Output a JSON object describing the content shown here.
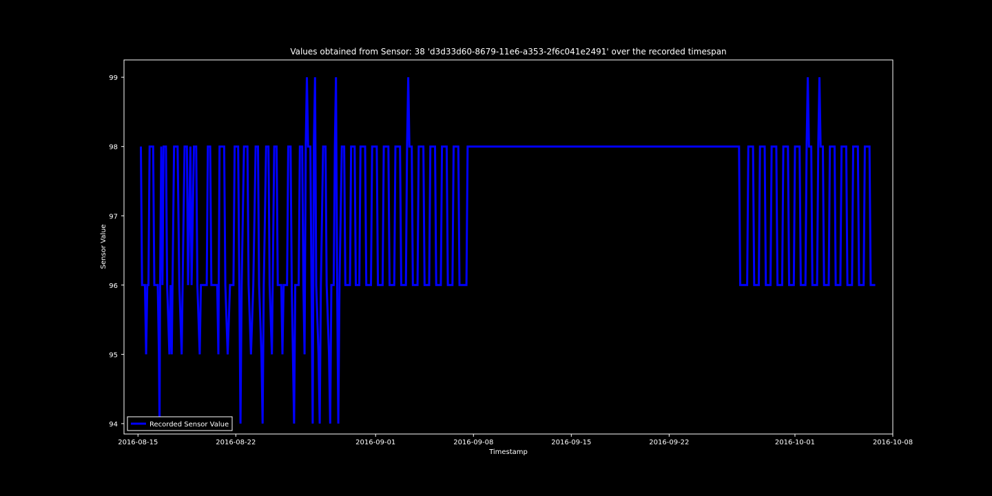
{
  "chart_data": {
    "type": "line",
    "title": "Values obtained from Sensor: 38 'd3d33d60-8679-11e6-a353-2f6c041e2491' over the recorded timespan",
    "xlabel": "Timestamp",
    "ylabel": "Sensor Value",
    "xlim": [
      "2016-08-14",
      "2016-10-08"
    ],
    "ylim": [
      93.85,
      99.25
    ],
    "x_ticks": [
      "2016-08-15",
      "2016-08-22",
      "2016-09-01",
      "2016-09-08",
      "2016-09-15",
      "2016-09-22",
      "2016-10-01",
      "2016-10-08"
    ],
    "y_ticks": [
      94,
      95,
      96,
      97,
      98,
      99
    ],
    "grid": false,
    "legend_position": "lower-left",
    "series": [
      {
        "name": "Recorded Sensor Value",
        "color": "#0000ff",
        "points": [
          [
            "2016-08-15T05:00",
            98
          ],
          [
            "2016-08-15T07:00",
            96
          ],
          [
            "2016-08-15T12:00",
            96
          ],
          [
            "2016-08-15T14:00",
            95
          ],
          [
            "2016-08-15T16:00",
            96
          ],
          [
            "2016-08-15T18:00",
            96
          ],
          [
            "2016-08-15T20:00",
            98
          ],
          [
            "2016-08-16T02:00",
            98
          ],
          [
            "2016-08-16T04:00",
            96
          ],
          [
            "2016-08-16T10:00",
            96
          ],
          [
            "2016-08-16T12:00",
            95
          ],
          [
            "2016-08-16T13:00",
            94
          ],
          [
            "2016-08-16T14:00",
            96
          ],
          [
            "2016-08-16T16:00",
            98
          ],
          [
            "2016-08-16T18:00",
            96
          ],
          [
            "2016-08-16T20:00",
            98
          ],
          [
            "2016-08-17T00:00",
            98
          ],
          [
            "2016-08-17T02:00",
            96
          ],
          [
            "2016-08-17T06:00",
            95
          ],
          [
            "2016-08-17T08:00",
            96
          ],
          [
            "2016-08-17T10:00",
            95
          ],
          [
            "2016-08-17T14:00",
            98
          ],
          [
            "2016-08-17T20:00",
            98
          ],
          [
            "2016-08-17T23:00",
            96
          ],
          [
            "2016-08-18T03:00",
            95
          ],
          [
            "2016-08-18T08:00",
            98
          ],
          [
            "2016-08-18T12:00",
            98
          ],
          [
            "2016-08-18T14:00",
            96
          ],
          [
            "2016-08-18T18:00",
            98
          ],
          [
            "2016-08-18T20:00",
            96
          ],
          [
            "2016-08-19T00:00",
            98
          ],
          [
            "2016-08-19T04:00",
            98
          ],
          [
            "2016-08-19T06:00",
            96
          ],
          [
            "2016-08-19T10:00",
            95
          ],
          [
            "2016-08-19T12:00",
            96
          ],
          [
            "2016-08-19T22:00",
            96
          ],
          [
            "2016-08-20T00:00",
            98
          ],
          [
            "2016-08-20T04:00",
            98
          ],
          [
            "2016-08-20T06:00",
            96
          ],
          [
            "2016-08-20T16:00",
            96
          ],
          [
            "2016-08-20T18:00",
            95
          ],
          [
            "2016-08-20T20:00",
            98
          ],
          [
            "2016-08-21T04:00",
            98
          ],
          [
            "2016-08-21T06:00",
            96
          ],
          [
            "2016-08-21T10:00",
            95
          ],
          [
            "2016-08-21T14:00",
            96
          ],
          [
            "2016-08-21T20:00",
            96
          ],
          [
            "2016-08-21T22:00",
            98
          ],
          [
            "2016-08-22T04:00",
            98
          ],
          [
            "2016-08-22T06:00",
            96
          ],
          [
            "2016-08-22T08:00",
            94
          ],
          [
            "2016-08-22T10:00",
            96
          ],
          [
            "2016-08-22T14:00",
            98
          ],
          [
            "2016-08-22T20:00",
            98
          ],
          [
            "2016-08-22T22:00",
            96
          ],
          [
            "2016-08-23T02:00",
            95
          ],
          [
            "2016-08-23T06:00",
            96
          ],
          [
            "2016-08-23T10:00",
            98
          ],
          [
            "2016-08-23T14:00",
            98
          ],
          [
            "2016-08-23T16:00",
            96
          ],
          [
            "2016-08-23T20:00",
            95
          ],
          [
            "2016-08-23T22:00",
            94
          ],
          [
            "2016-08-24T00:00",
            96
          ],
          [
            "2016-08-24T04:00",
            98
          ],
          [
            "2016-08-24T08:00",
            98
          ],
          [
            "2016-08-24T10:00",
            96
          ],
          [
            "2016-08-24T14:00",
            95
          ],
          [
            "2016-08-24T18:00",
            98
          ],
          [
            "2016-08-24T22:00",
            98
          ],
          [
            "2016-08-25T00:00",
            96
          ],
          [
            "2016-08-25T06:00",
            96
          ],
          [
            "2016-08-25T08:00",
            95
          ],
          [
            "2016-08-25T10:00",
            96
          ],
          [
            "2016-08-25T16:00",
            96
          ],
          [
            "2016-08-25T18:00",
            98
          ],
          [
            "2016-08-25T22:00",
            98
          ],
          [
            "2016-08-26T00:00",
            96
          ],
          [
            "2016-08-26T02:00",
            95
          ],
          [
            "2016-08-26T04:00",
            94
          ],
          [
            "2016-08-26T06:00",
            96
          ],
          [
            "2016-08-26T12:00",
            96
          ],
          [
            "2016-08-26T14:00",
            98
          ],
          [
            "2016-08-26T18:00",
            98
          ],
          [
            "2016-08-26T20:00",
            96
          ],
          [
            "2016-08-26T22:00",
            95
          ],
          [
            "2016-08-27T00:00",
            98
          ],
          [
            "2016-08-27T02:00",
            99
          ],
          [
            "2016-08-27T04:00",
            98
          ],
          [
            "2016-08-27T08:00",
            98
          ],
          [
            "2016-08-27T10:00",
            96
          ],
          [
            "2016-08-27T12:00",
            94
          ],
          [
            "2016-08-27T14:00",
            98
          ],
          [
            "2016-08-27T16:00",
            99
          ],
          [
            "2016-08-27T18:00",
            96
          ],
          [
            "2016-08-27T22:00",
            95
          ],
          [
            "2016-08-28T00:00",
            94
          ],
          [
            "2016-08-28T02:00",
            96
          ],
          [
            "2016-08-28T06:00",
            98
          ],
          [
            "2016-08-28T10:00",
            98
          ],
          [
            "2016-08-28T12:00",
            96
          ],
          [
            "2016-08-28T16:00",
            95
          ],
          [
            "2016-08-28T18:00",
            94
          ],
          [
            "2016-08-28T20:00",
            96
          ],
          [
            "2016-08-29T00:00",
            96
          ],
          [
            "2016-08-29T02:00",
            98
          ],
          [
            "2016-08-29T04:00",
            99
          ],
          [
            "2016-08-29T06:00",
            96
          ],
          [
            "2016-08-29T08:00",
            94
          ],
          [
            "2016-08-29T10:00",
            96
          ],
          [
            "2016-08-29T14:00",
            98
          ],
          [
            "2016-08-29T18:00",
            98
          ],
          [
            "2016-08-29T20:00",
            96
          ],
          [
            "2016-08-30T04:00",
            96
          ],
          [
            "2016-08-30T06:00",
            98
          ],
          [
            "2016-08-30T12:00",
            98
          ],
          [
            "2016-08-30T14:00",
            96
          ],
          [
            "2016-08-30T20:00",
            96
          ],
          [
            "2016-08-30T22:00",
            98
          ],
          [
            "2016-08-31T06:00",
            98
          ],
          [
            "2016-08-31T08:00",
            96
          ],
          [
            "2016-08-31T16:00",
            96
          ],
          [
            "2016-08-31T18:00",
            98
          ],
          [
            "2016-09-01T02:00",
            98
          ],
          [
            "2016-09-01T04:00",
            96
          ],
          [
            "2016-09-01T12:00",
            96
          ],
          [
            "2016-09-01T14:00",
            98
          ],
          [
            "2016-09-01T22:00",
            98
          ],
          [
            "2016-09-02T00:00",
            96
          ],
          [
            "2016-09-02T08:00",
            96
          ],
          [
            "2016-09-02T10:00",
            98
          ],
          [
            "2016-09-02T18:00",
            98
          ],
          [
            "2016-09-02T20:00",
            96
          ],
          [
            "2016-09-03T04:00",
            96
          ],
          [
            "2016-09-03T06:00",
            98
          ],
          [
            "2016-09-03T08:00",
            99
          ],
          [
            "2016-09-03T10:00",
            98
          ],
          [
            "2016-09-03T14:00",
            98
          ],
          [
            "2016-09-03T16:00",
            96
          ],
          [
            "2016-09-04T00:00",
            96
          ],
          [
            "2016-09-04T02:00",
            98
          ],
          [
            "2016-09-04T10:00",
            98
          ],
          [
            "2016-09-04T12:00",
            96
          ],
          [
            "2016-09-04T20:00",
            96
          ],
          [
            "2016-09-04T22:00",
            98
          ],
          [
            "2016-09-05T06:00",
            98
          ],
          [
            "2016-09-05T08:00",
            96
          ],
          [
            "2016-09-05T16:00",
            96
          ],
          [
            "2016-09-05T18:00",
            98
          ],
          [
            "2016-09-06T02:00",
            98
          ],
          [
            "2016-09-06T04:00",
            96
          ],
          [
            "2016-09-06T12:00",
            96
          ],
          [
            "2016-09-06T14:00",
            98
          ],
          [
            "2016-09-06T22:00",
            98
          ],
          [
            "2016-09-07T00:00",
            96
          ],
          [
            "2016-09-07T12:00",
            96
          ],
          [
            "2016-09-07T14:00",
            98
          ],
          [
            "2016-09-27T00:00",
            98
          ],
          [
            "2016-09-27T02:00",
            96
          ],
          [
            "2016-09-27T14:00",
            96
          ],
          [
            "2016-09-27T16:00",
            98
          ],
          [
            "2016-09-28T00:00",
            98
          ],
          [
            "2016-09-28T02:00",
            96
          ],
          [
            "2016-09-28T10:00",
            96
          ],
          [
            "2016-09-28T12:00",
            98
          ],
          [
            "2016-09-28T20:00",
            98
          ],
          [
            "2016-09-28T22:00",
            96
          ],
          [
            "2016-09-29T06:00",
            96
          ],
          [
            "2016-09-29T08:00",
            98
          ],
          [
            "2016-09-29T16:00",
            98
          ],
          [
            "2016-09-29T18:00",
            96
          ],
          [
            "2016-09-30T02:00",
            96
          ],
          [
            "2016-09-30T04:00",
            98
          ],
          [
            "2016-09-30T12:00",
            98
          ],
          [
            "2016-09-30T14:00",
            96
          ],
          [
            "2016-09-30T22:00",
            96
          ],
          [
            "2016-10-01T00:00",
            98
          ],
          [
            "2016-10-01T08:00",
            98
          ],
          [
            "2016-10-01T10:00",
            96
          ],
          [
            "2016-10-01T18:00",
            96
          ],
          [
            "2016-10-01T20:00",
            98
          ],
          [
            "2016-10-01T22:00",
            99
          ],
          [
            "2016-10-02T00:00",
            98
          ],
          [
            "2016-10-02T04:00",
            98
          ],
          [
            "2016-10-02T06:00",
            96
          ],
          [
            "2016-10-02T14:00",
            96
          ],
          [
            "2016-10-02T16:00",
            98
          ],
          [
            "2016-10-02T18:00",
            99
          ],
          [
            "2016-10-02T20:00",
            98
          ],
          [
            "2016-10-03T00:00",
            98
          ],
          [
            "2016-10-03T02:00",
            96
          ],
          [
            "2016-10-03T10:00",
            96
          ],
          [
            "2016-10-03T12:00",
            98
          ],
          [
            "2016-10-03T20:00",
            98
          ],
          [
            "2016-10-03T22:00",
            96
          ],
          [
            "2016-10-04T06:00",
            96
          ],
          [
            "2016-10-04T08:00",
            98
          ],
          [
            "2016-10-04T16:00",
            98
          ],
          [
            "2016-10-04T18:00",
            96
          ],
          [
            "2016-10-05T02:00",
            96
          ],
          [
            "2016-10-05T04:00",
            98
          ],
          [
            "2016-10-05T12:00",
            98
          ],
          [
            "2016-10-05T14:00",
            96
          ],
          [
            "2016-10-05T22:00",
            96
          ],
          [
            "2016-10-06T00:00",
            98
          ],
          [
            "2016-10-06T08:00",
            98
          ],
          [
            "2016-10-06T10:00",
            96
          ],
          [
            "2016-10-06T18:00",
            96
          ]
        ]
      }
    ]
  }
}
